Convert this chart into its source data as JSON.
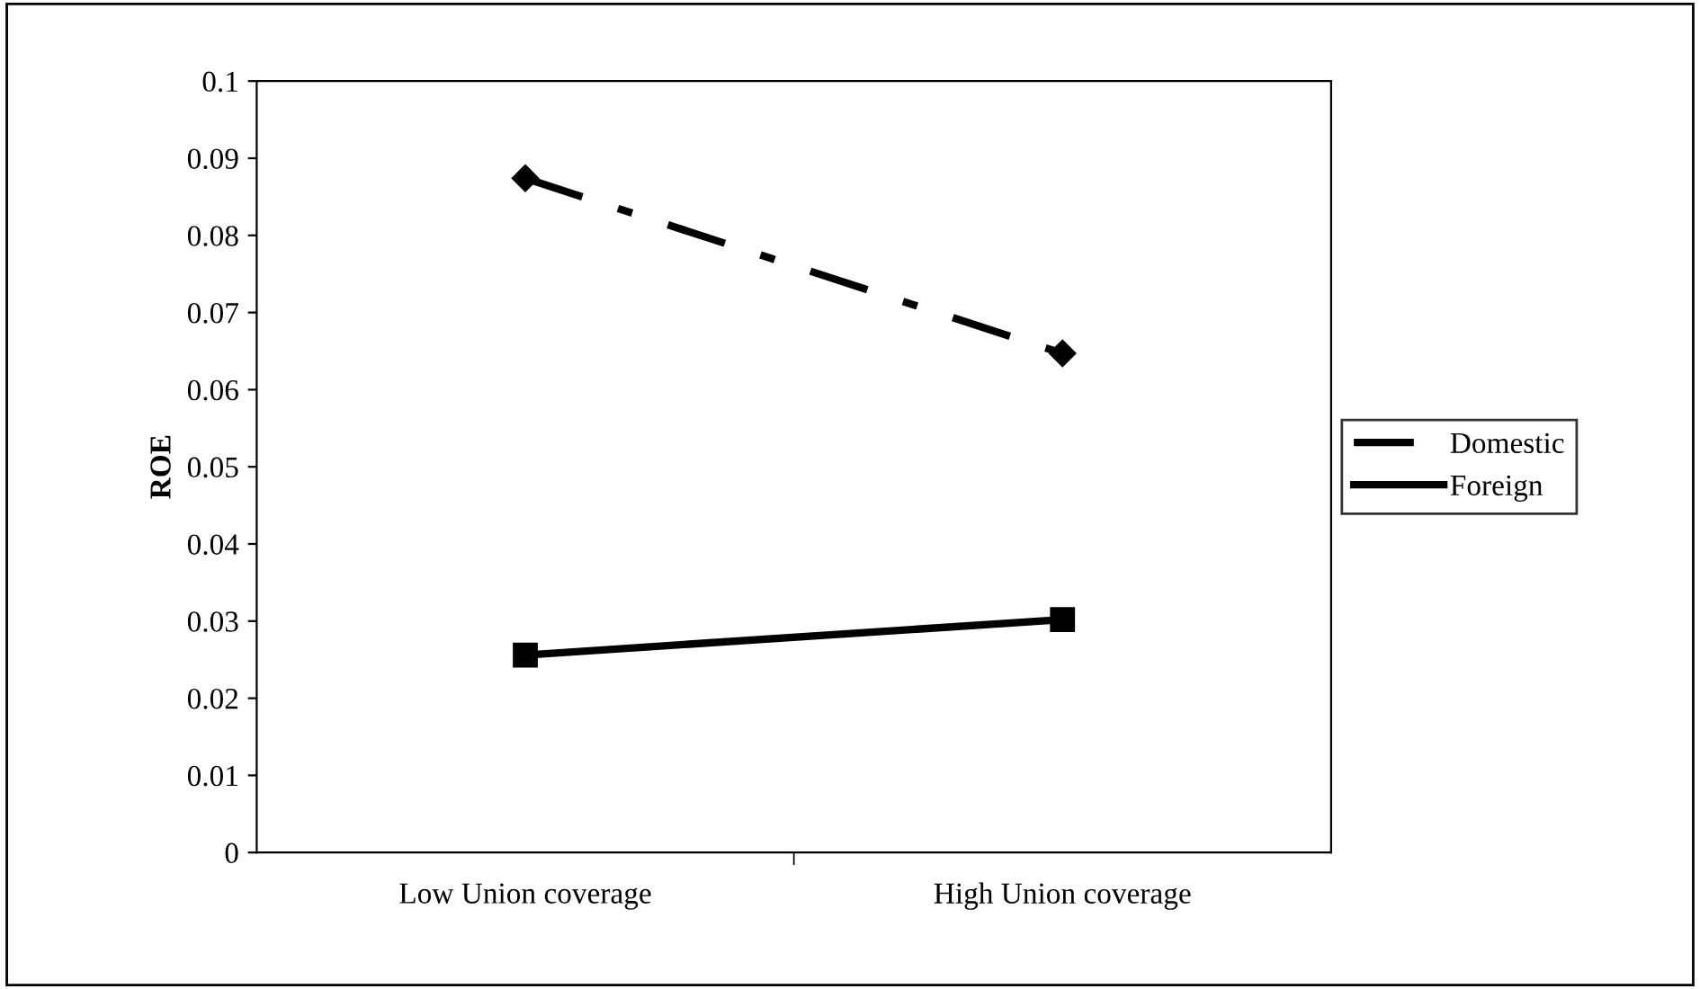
{
  "chart_data": {
    "type": "line",
    "ylabel": "ROE",
    "categories": [
      "Low Union coverage",
      "High Union coverage"
    ],
    "series": [
      {
        "name": "Domestic",
        "color": "#000000",
        "values": [
          0.0874,
          0.0647
        ],
        "marker": "diamond",
        "line_style": "dashdot"
      },
      {
        "name": "Foreign",
        "color": "#000000",
        "values": [
          0.0256,
          0.0302
        ],
        "marker": "square",
        "line_style": "solid"
      }
    ],
    "ylim": [
      0,
      0.1
    ],
    "yticks": [
      0,
      0.01,
      0.02,
      0.03,
      0.04,
      0.05,
      0.06,
      0.07,
      0.08,
      0.09,
      0.1
    ],
    "grid": false,
    "legend": "right"
  }
}
